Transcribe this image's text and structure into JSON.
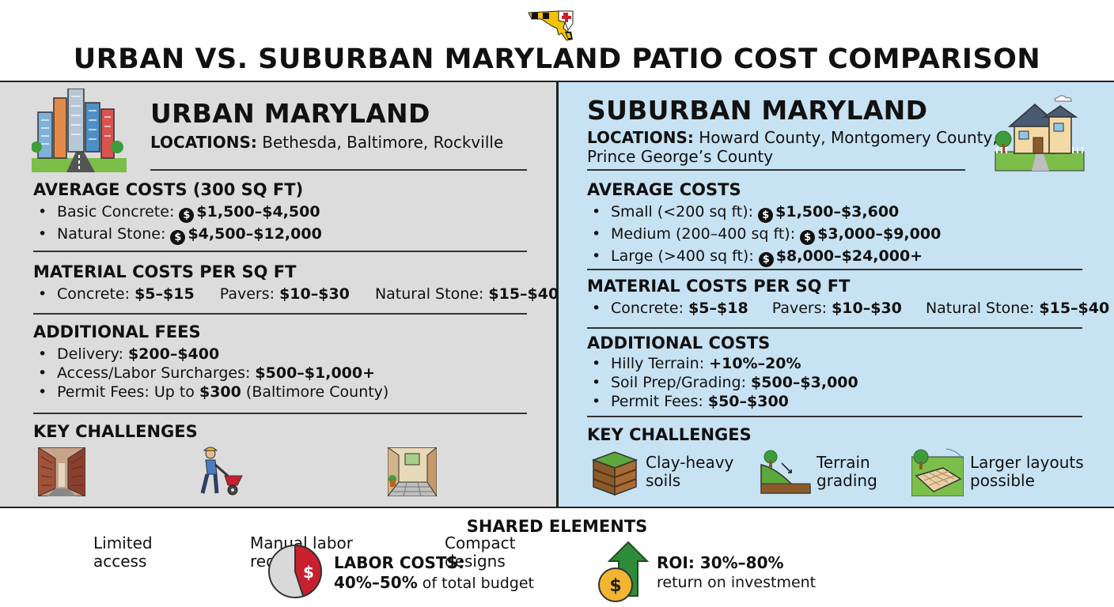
{
  "main_title": "URBAN VS. SUBURBAN MARYLAND PATIO COST COMPARISON",
  "colors": {
    "urban_bg": "#dcdcdc",
    "suburban_bg": "#c7e2f2",
    "accent_red": "#c8202e",
    "accent_green": "#2e8b3a",
    "coin_gold": "#f2b531"
  },
  "urban": {
    "title": "URBAN MARYLAND",
    "locations_label": "LOCATIONS:",
    "locations_value": "Bethesda, Baltimore, Rockville",
    "avg_heading": "AVERAGE COSTS (300 SQ FT)",
    "avg_items": [
      {
        "label": "Basic Concrete:",
        "value": "$1,500–$4,500"
      },
      {
        "label": "Natural Stone:",
        "value": "$4,500–$12,000"
      }
    ],
    "material_heading": "MATERIAL COSTS PER SQ FT",
    "materials": [
      {
        "label": "Concrete:",
        "value": "$5–$15"
      },
      {
        "label": "Pavers:",
        "value": "$10–$30"
      },
      {
        "label": "Natural Stone:",
        "value": "$15–$40"
      }
    ],
    "fees_heading": "ADDITIONAL FEES",
    "fees": [
      {
        "label": "Delivery:",
        "value": "$200–$400",
        "suffix": ""
      },
      {
        "label": "Access/Labor Surcharges:",
        "value": "$500–$1,000+",
        "suffix": ""
      },
      {
        "label": "Permit Fees: Up to",
        "value": "$300",
        "suffix": "(Baltimore County)"
      }
    ],
    "challenges_heading": "KEY CHALLENGES",
    "challenges": [
      {
        "line1": "Limited",
        "line2": "access",
        "icon": "alley-icon"
      },
      {
        "line1": "Manual labor",
        "line2": "required",
        "icon": "worker-wheelbarrow-icon"
      },
      {
        "line1": "Compact",
        "line2": "designs",
        "icon": "courtyard-icon"
      }
    ]
  },
  "suburban": {
    "title": "SUBURBAN MARYLAND",
    "locations_label": "LOCATIONS:",
    "locations_value": "Howard County, Montgomery County,",
    "locations_value_2": "Prince George’s County",
    "avg_heading": "AVERAGE COSTS",
    "avg_items": [
      {
        "label": "Small (<200 sq ft):",
        "value": "$1,500–$3,600"
      },
      {
        "label": "Medium (200–400 sq ft):",
        "value": "$3,000–$9,000"
      },
      {
        "label": "Large (>400 sq ft):",
        "value": "$8,000–$24,000+"
      }
    ],
    "material_heading": "MATERIAL COSTS PER SQ FT",
    "materials": [
      {
        "label": "Concrete:",
        "value": "$5–$18"
      },
      {
        "label": "Pavers:",
        "value": "$10–$30"
      },
      {
        "label": "Natural Stone:",
        "value": "$15–$40"
      }
    ],
    "costs_heading": "ADDITIONAL COSTS",
    "costs": [
      {
        "label": "Hilly Terrain:",
        "value": "+10%–20%"
      },
      {
        "label": "Soil Prep/Grading:",
        "value": "$500–$3,000"
      },
      {
        "label": "Permit Fees:",
        "value": "$50–$300"
      }
    ],
    "challenges_heading": "KEY CHALLENGES",
    "challenges": [
      {
        "line1": "Clay-heavy",
        "line2": "soils",
        "icon": "soil-layers-icon"
      },
      {
        "line1": "Terrain",
        "line2": "grading",
        "icon": "slope-icon"
      },
      {
        "line1": "Larger layouts",
        "line2": "possible",
        "icon": "large-patio-icon"
      }
    ]
  },
  "shared": {
    "heading": "SHARED ELEMENTS",
    "labor_title": "LABOR COSTS:",
    "labor_value": "40%–50%",
    "labor_suffix": "of total budget",
    "labor_fraction": 0.45,
    "roi_title": "ROI: 30%–80%",
    "roi_subtitle": "return on investment"
  }
}
